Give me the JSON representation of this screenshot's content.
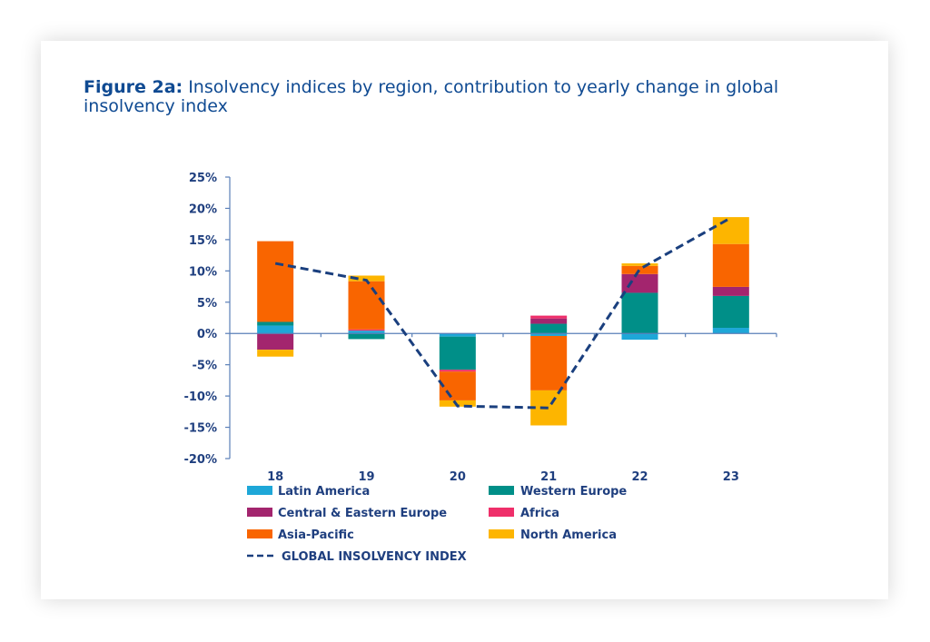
{
  "chart_data": {
    "type": "bar",
    "stacked": true,
    "title_bold": "Figure 2a:",
    "title": "Insolvency indices by region, contribution to yearly change in global insolvency index",
    "xlabel": "",
    "ylabel": "",
    "ylim": [
      -20,
      25
    ],
    "yticks": [
      25,
      20,
      15,
      10,
      5,
      0,
      -5,
      -10,
      -15,
      -20
    ],
    "ytick_labels": [
      "25%",
      "20%",
      "15%",
      "10%",
      "5%",
      "0%",
      "-5%",
      "-10%",
      "-15%",
      "-20%"
    ],
    "categories": [
      "18",
      "19",
      "20",
      "21",
      "22",
      "23"
    ],
    "grid": false,
    "legend_placement": "bottom",
    "series": [
      {
        "name": "Latin America",
        "color": "#1ea7d8",
        "values": [
          1.25,
          0.45,
          -0.5,
          -0.4,
          -1.0,
          0.9
        ]
      },
      {
        "name": "Western Europe",
        "color": "#008f88",
        "values": [
          0.6,
          -0.9,
          -5.3,
          1.55,
          6.5,
          5.1
        ]
      },
      {
        "name": "Central & Eastern Europe",
        "color": "#a3256e",
        "values": [
          -2.6,
          0.0,
          0.0,
          0.85,
          3.0,
          1.45
        ]
      },
      {
        "name": "Africa",
        "color": "#ef2f6a",
        "values": [
          0.0,
          0.2,
          -0.3,
          0.45,
          0.0,
          0.0
        ]
      },
      {
        "name": "Asia-Pacific",
        "color": "#f96500",
        "values": [
          12.9,
          7.7,
          -4.6,
          -8.7,
          1.3,
          6.85
        ]
      },
      {
        "name": "North America",
        "color": "#fdb500",
        "values": [
          -1.1,
          0.9,
          -1.0,
          -5.6,
          0.4,
          4.3
        ]
      }
    ],
    "line": {
      "name": "GLOBAL INSOLVENCY INDEX",
      "color": "#1a3f7e",
      "style": "dashed",
      "values": [
        11.2,
        8.5,
        -11.6,
        -11.9,
        10.3,
        18.5
      ]
    }
  }
}
